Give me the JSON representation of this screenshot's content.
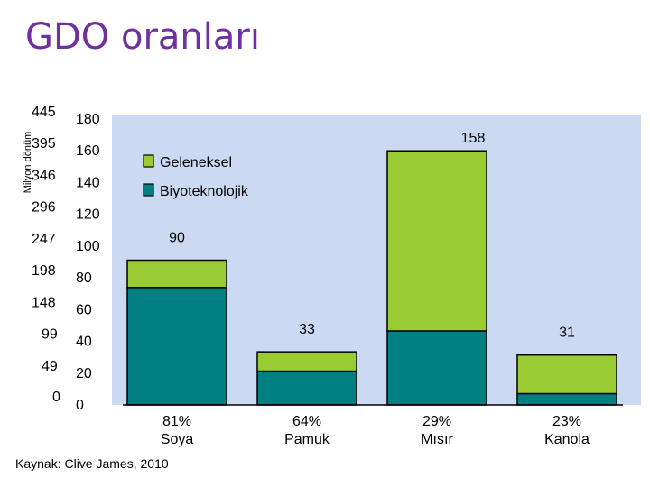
{
  "page": {
    "title": "GDO oranları",
    "source": "Kaynak: Clive James, 2010"
  },
  "colors": {
    "title": "#7030a0",
    "plot_background": "#ccd9f2",
    "conventional": "#99cc33",
    "biotech": "#008080"
  },
  "chart_data": {
    "type": "bar",
    "stacked": true,
    "title": "",
    "xlabel": "",
    "ylabel": "Milyon dönüm",
    "ylim": [
      0,
      180
    ],
    "yticks": [
      0,
      20,
      40,
      60,
      80,
      100,
      120,
      140,
      160,
      180
    ],
    "secondary_yticks": [
      "0",
      "49",
      "99",
      "148",
      "198",
      "247",
      "296",
      "346",
      "395",
      "445"
    ],
    "categories": [
      "Soya",
      "Pamuk",
      "Mısır",
      "Kanola"
    ],
    "category_shares": [
      "81%",
      "64%",
      "29%",
      "23%"
    ],
    "totals": [
      90,
      33,
      158,
      31
    ],
    "series": [
      {
        "name": "Biyoteknolojik",
        "values": [
          73,
          21,
          46,
          7
        ]
      },
      {
        "name": "Geleneksel",
        "values": [
          17,
          12,
          112,
          24
        ]
      }
    ],
    "legend": {
      "position": "top-left",
      "entries": [
        "Geleneksel",
        "Biyoteknolojik"
      ]
    },
    "grid": false
  }
}
